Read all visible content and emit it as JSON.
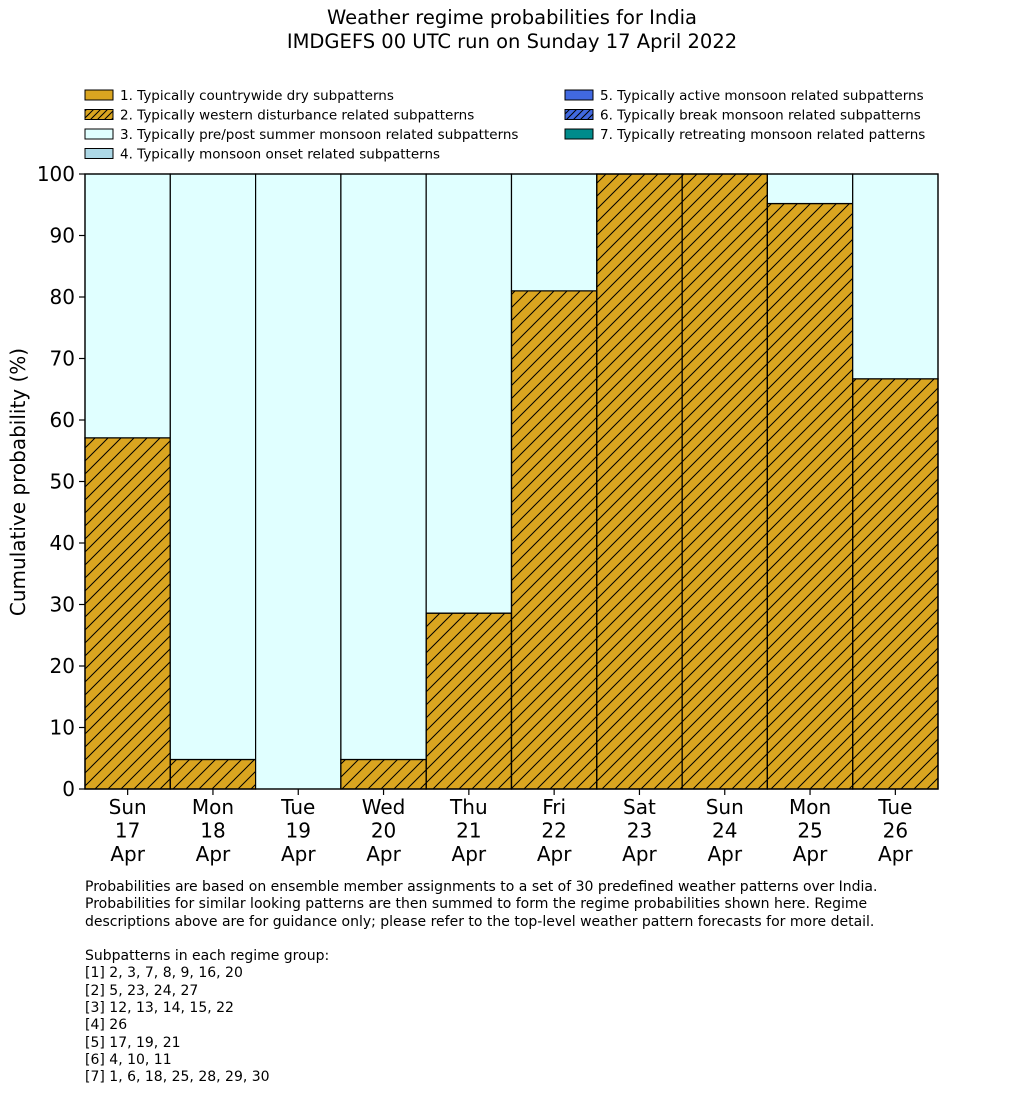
{
  "title": {
    "line1": "Weather regime probabilities for India",
    "line2": "IMDGEFS 00 UTC run on Sunday 17 April 2022"
  },
  "chart_data": {
    "type": "bar",
    "stacked": true,
    "title": "Weather regime probabilities for India\nIMDGEFS 00 UTC run on Sunday 17 April 2022",
    "ylabel": "Cumulative probability (%)",
    "xlabel": "",
    "ylim": [
      0,
      100
    ],
    "yticks": [
      0,
      10,
      20,
      30,
      40,
      50,
      60,
      70,
      80,
      90,
      100
    ],
    "categories": [
      [
        "Sun",
        "17",
        "Apr"
      ],
      [
        "Mon",
        "18",
        "Apr"
      ],
      [
        "Tue",
        "19",
        "Apr"
      ],
      [
        "Wed",
        "20",
        "Apr"
      ],
      [
        "Thu",
        "21",
        "Apr"
      ],
      [
        "Fri",
        "22",
        "Apr"
      ],
      [
        "Sat",
        "23",
        "Apr"
      ],
      [
        "Sun",
        "24",
        "Apr"
      ],
      [
        "Mon",
        "25",
        "Apr"
      ],
      [
        "Tue",
        "26",
        "Apr"
      ]
    ],
    "legend_placement": "top, two columns",
    "series": [
      {
        "name": "1. Typically countrywide dry subpatterns",
        "color": "#daa520",
        "hatch": false,
        "values": [
          0,
          0,
          0,
          0,
          0,
          0,
          0,
          0,
          0,
          0
        ]
      },
      {
        "name": "2. Typically western disturbance related subpatterns",
        "color": "#daa520",
        "hatch": true,
        "values": [
          57.1,
          4.8,
          0,
          4.8,
          28.6,
          81.0,
          100,
          100,
          95.2,
          66.7
        ]
      },
      {
        "name": "3. Typically pre/post summer monsoon related subpatterns",
        "color": "#e0ffff",
        "hatch": false,
        "values": [
          42.9,
          95.2,
          100,
          95.2,
          71.4,
          19.0,
          0,
          0,
          4.8,
          33.3
        ]
      },
      {
        "name": "4. Typically monsoon onset related subpatterns",
        "color": "#add8e6",
        "hatch": false,
        "values": [
          0,
          0,
          0,
          0,
          0,
          0,
          0,
          0,
          0,
          0
        ]
      },
      {
        "name": "5. Typically active monsoon related subpatterns",
        "color": "#4169e1",
        "hatch": false,
        "values": [
          0,
          0,
          0,
          0,
          0,
          0,
          0,
          0,
          0,
          0
        ]
      },
      {
        "name": "6. Typically break monsoon related subpatterns",
        "color": "#4169e1",
        "hatch": true,
        "values": [
          0,
          0,
          0,
          0,
          0,
          0,
          0,
          0,
          0,
          0
        ]
      },
      {
        "name": "7. Typically retreating monsoon related patterns",
        "color": "#008b8b",
        "hatch": false,
        "values": [
          0,
          0,
          0,
          0,
          0,
          0,
          0,
          0,
          0,
          0
        ]
      }
    ]
  },
  "footnote": {
    "paragraph": [
      "Probabilities are based on ensemble member assignments to a set of 30 predefined weather patterns over India.",
      "Probabilities for similar looking patterns are then summed to form the regime probabilities shown here. Regime",
      "descriptions above are for guidance only; please refer to the top-level weather pattern forecasts for more detail."
    ],
    "groups_heading": "Subpatterns in each regime group:",
    "groups": [
      "[1] 2, 3, 7, 8, 9, 16, 20",
      "[2] 5, 23, 24, 27",
      "[3] 12, 13, 14, 15, 22",
      "[4] 26",
      "[5] 17, 19, 21",
      "[6] 4, 10, 11",
      "[7] 1, 6, 18, 25, 28, 29, 30"
    ]
  }
}
